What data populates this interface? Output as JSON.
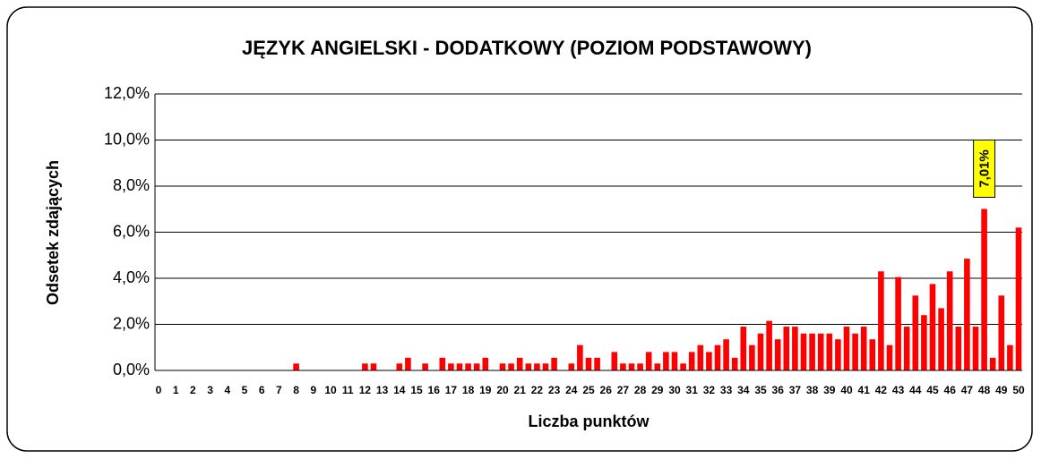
{
  "chart_data": {
    "type": "bar",
    "title": "JĘZYK ANGIELSKI - DODATKOWY (POZIOM PODSTAWOWY)",
    "y_label": "Odsetek zdających",
    "x_label": "Liczba punktów",
    "categories": [
      "0",
      null,
      "1",
      null,
      "2",
      null,
      "3",
      null,
      "4",
      null,
      "5",
      null,
      "6",
      null,
      "7",
      null,
      "8",
      null,
      "9",
      null,
      "10",
      null,
      "11",
      null,
      "12",
      null,
      "13",
      null,
      "14",
      null,
      "15",
      null,
      "16",
      null,
      "17",
      null,
      "18",
      null,
      "19",
      null,
      "20",
      null,
      "21",
      null,
      "22",
      null,
      "23",
      null,
      "24",
      null,
      "25",
      null,
      "26",
      null,
      "27",
      null,
      "28",
      null,
      "29",
      null,
      "30",
      null,
      "31",
      null,
      "32",
      null,
      "33",
      null,
      "34",
      null,
      "35",
      null,
      "36",
      null,
      "37",
      null,
      "38",
      null,
      "39",
      null,
      "40",
      null,
      "41",
      null,
      "42",
      null,
      "43",
      null,
      "44",
      null,
      "45",
      null,
      "46",
      null,
      "47",
      null,
      "48",
      null,
      "49",
      null,
      "50"
    ],
    "values": [
      0,
      0,
      0,
      0,
      0,
      0,
      0,
      0,
      0,
      0,
      0,
      0,
      0,
      0,
      0,
      0,
      0.3,
      0,
      0,
      0,
      0,
      0,
      0,
      0,
      0.3,
      0.3,
      0,
      0,
      0.3,
      0.55,
      0,
      0.3,
      0,
      0.55,
      0.3,
      0.3,
      0.3,
      0.3,
      0.55,
      0,
      0.3,
      0.3,
      0.55,
      0.3,
      0.3,
      0.3,
      0.55,
      0,
      0.3,
      1.1,
      0.55,
      0.55,
      0,
      0.8,
      0.3,
      0.3,
      0.3,
      0.8,
      0.3,
      0.8,
      0.8,
      0.3,
      0.8,
      1.1,
      0.8,
      1.1,
      1.35,
      0.55,
      1.9,
      1.1,
      1.6,
      2.15,
      1.35,
      1.9,
      1.9,
      1.6,
      1.6,
      1.6,
      1.6,
      1.35,
      1.9,
      1.6,
      1.9,
      1.35,
      4.3,
      1.1,
      4.05,
      1.9,
      3.25,
      2.4,
      3.75,
      2.7,
      4.3,
      1.9,
      4.85,
      1.9,
      7.01,
      0.55,
      3.25,
      1.1,
      6.2
    ],
    "value_labels": [
      null,
      null,
      null,
      null,
      null,
      null,
      null,
      null,
      null,
      null,
      null,
      null,
      null,
      null,
      null,
      null,
      null,
      null,
      null,
      null,
      null,
      null,
      null,
      null,
      null,
      null,
      null,
      null,
      null,
      null,
      null,
      null,
      null,
      null,
      null,
      null,
      null,
      null,
      null,
      null,
      null,
      null,
      null,
      null,
      null,
      null,
      null,
      null,
      null,
      null,
      null,
      null,
      null,
      null,
      null,
      null,
      null,
      null,
      null,
      null,
      null,
      null,
      null,
      null,
      null,
      null,
      null,
      null,
      null,
      null,
      null,
      null,
      null,
      null,
      null,
      null,
      null,
      null,
      null,
      null,
      null,
      null,
      null,
      null,
      null,
      null,
      null,
      null,
      null,
      null,
      null,
      null,
      null,
      null,
      null,
      null,
      "7,01%",
      null,
      null,
      null,
      null
    ],
    "color": "#ff0000",
    "ylim": [
      0,
      12
    ],
    "yticks": [
      {
        "value": 0,
        "label": "0,0%"
      },
      {
        "value": 2,
        "label": "2,0%"
      },
      {
        "value": 4,
        "label": "4,0%"
      },
      {
        "value": 6,
        "label": "6,0%"
      },
      {
        "value": 8,
        "label": "8,0%"
      },
      {
        "value": 10,
        "label": "10,0%"
      },
      {
        "value": 12,
        "label": "12,0%"
      }
    ],
    "grid": true
  }
}
